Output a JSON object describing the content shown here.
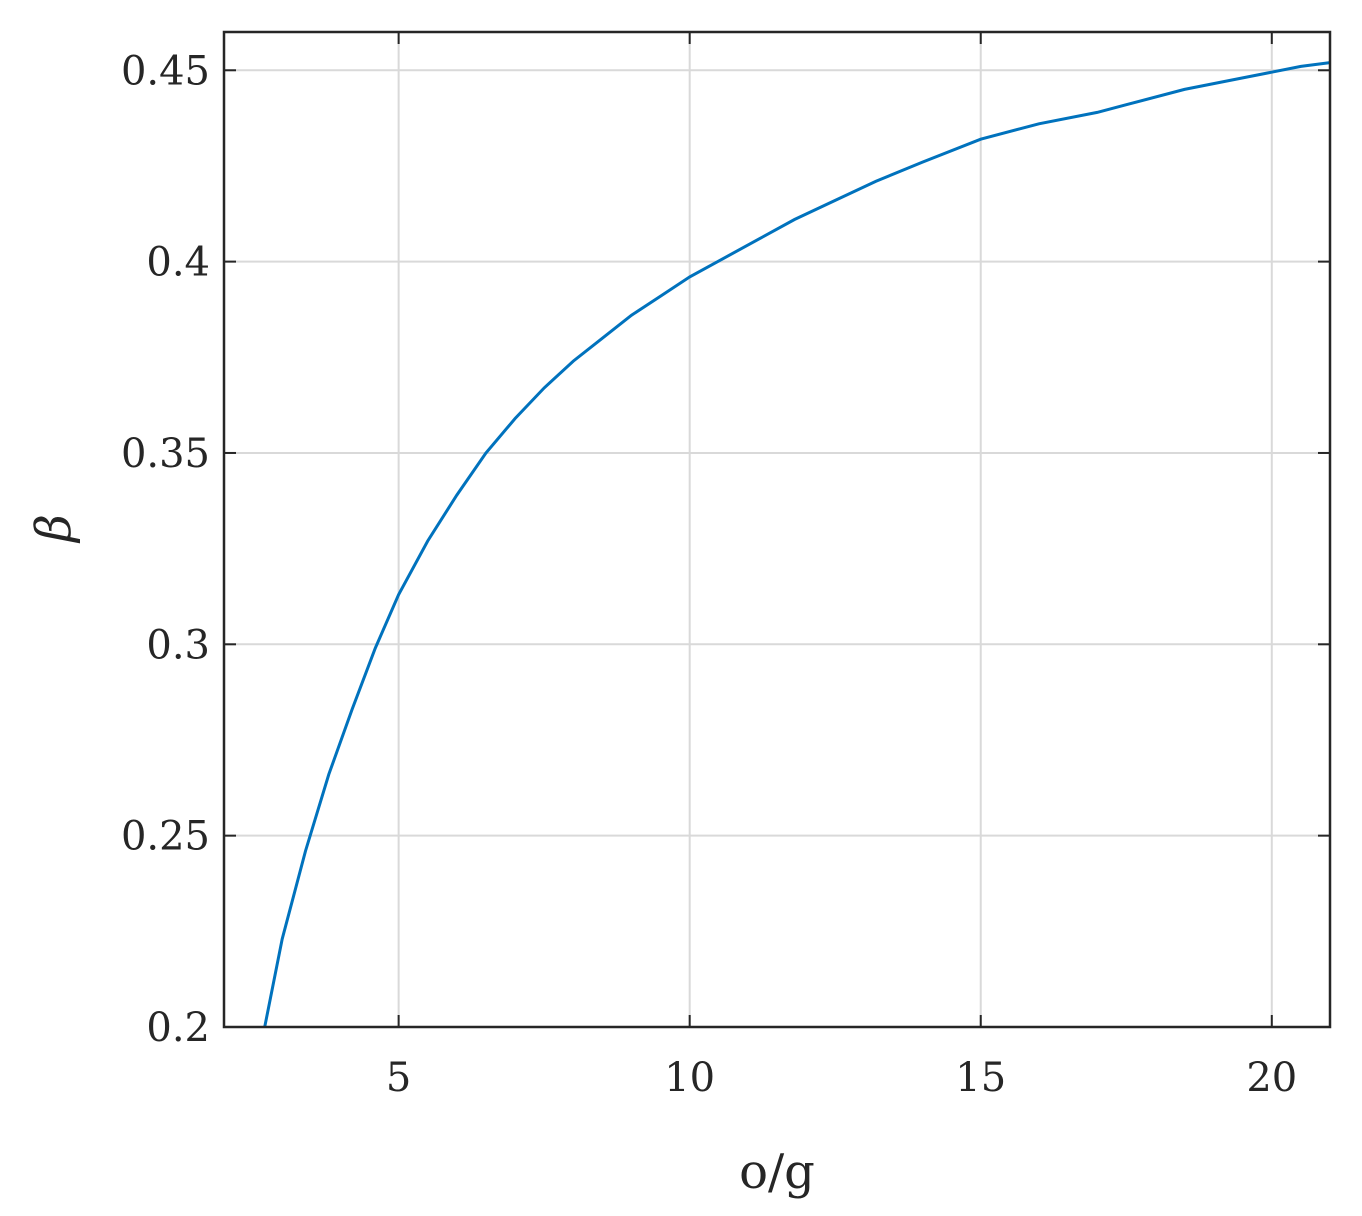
{
  "chart_data": {
    "type": "line",
    "xlabel": "o/g",
    "ylabel": "β",
    "xlim": [
      2,
      21
    ],
    "ylim": [
      0.2,
      0.46
    ],
    "xticks": [
      5,
      10,
      15,
      20
    ],
    "xtick_labels": [
      "5",
      "10",
      "15",
      "20"
    ],
    "yticks": [
      0.2,
      0.25,
      0.3,
      0.35,
      0.4,
      0.45
    ],
    "ytick_labels": [
      "0.2",
      "0.25",
      "0.3",
      "0.35",
      "0.4",
      "0.45"
    ],
    "grid": true,
    "series": [
      {
        "color": "#0072bd",
        "x": [
          2.7,
          3.0,
          3.4,
          3.8,
          4.2,
          4.6,
          5.0,
          5.5,
          6.0,
          6.5,
          7.0,
          7.5,
          8.0,
          8.5,
          9.0,
          9.5,
          10.0,
          10.6,
          11.2,
          11.8,
          12.5,
          13.2,
          14.0,
          15.0,
          16.0,
          17.0,
          17.5,
          18.5,
          19.5,
          20.5,
          21.0
        ],
        "y": [
          0.2,
          0.223,
          0.246,
          0.266,
          0.283,
          0.299,
          0.313,
          0.327,
          0.339,
          0.35,
          0.359,
          0.367,
          0.374,
          0.38,
          0.386,
          0.391,
          0.396,
          0.401,
          0.406,
          0.411,
          0.416,
          0.421,
          0.426,
          0.432,
          0.436,
          0.439,
          0.441,
          0.445,
          0.448,
          0.451,
          0.452
        ]
      }
    ]
  }
}
